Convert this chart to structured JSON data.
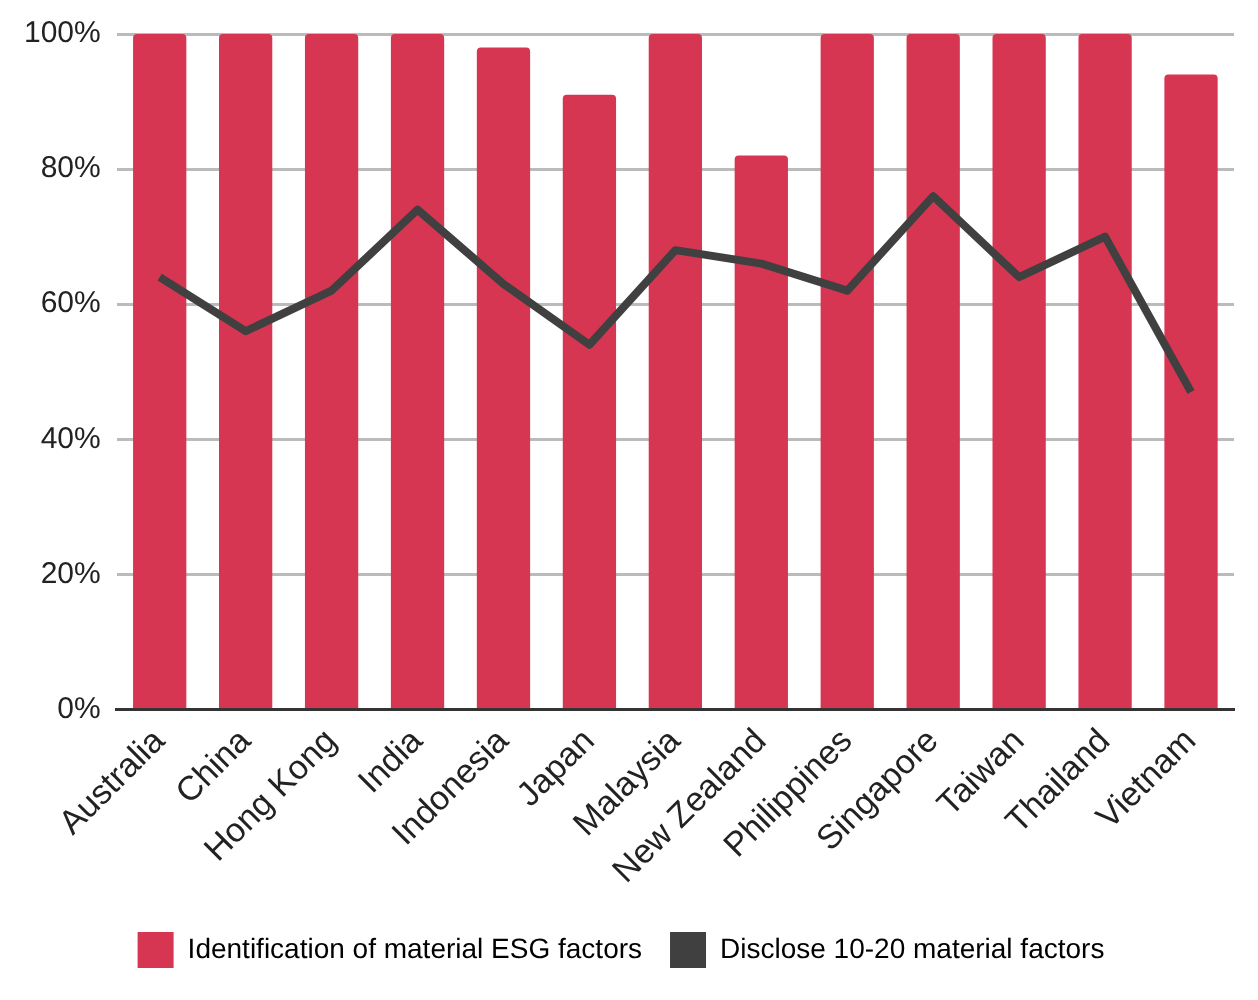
{
  "chart_data": {
    "type": "bar",
    "categories": [
      "Australia",
      "China",
      "Hong Kong",
      "India",
      "Indonesia",
      "Japan",
      "Malaysia",
      "New Zealand",
      "Philippines",
      "Singapore",
      "Taiwan",
      "Thailand",
      "Vietnam"
    ],
    "series": [
      {
        "name": "Identification of material ESG factors",
        "color": "#d63652",
        "values": [
          100,
          100,
          100,
          100,
          98,
          91,
          100,
          82,
          100,
          100,
          100,
          100,
          94
        ]
      },
      {
        "name": "Disclose 10-20 material factors",
        "type": "line",
        "color": "#404040",
        "values": [
          64,
          56,
          62,
          74,
          63,
          54,
          68,
          66,
          62,
          76,
          64,
          70,
          47
        ]
      }
    ],
    "ylim": [
      0,
      100
    ],
    "yticks": [
      {
        "value": 0,
        "label": "0%"
      },
      {
        "value": 20,
        "label": "20%"
      },
      {
        "value": 40,
        "label": "40%"
      },
      {
        "value": 60,
        "label": "60%"
      },
      {
        "value": 80,
        "label": "80%"
      },
      {
        "value": 100,
        "label": "100%"
      }
    ],
    "grid": "y",
    "legend": "bottom",
    "marker": "none",
    "line_style": "solid"
  }
}
